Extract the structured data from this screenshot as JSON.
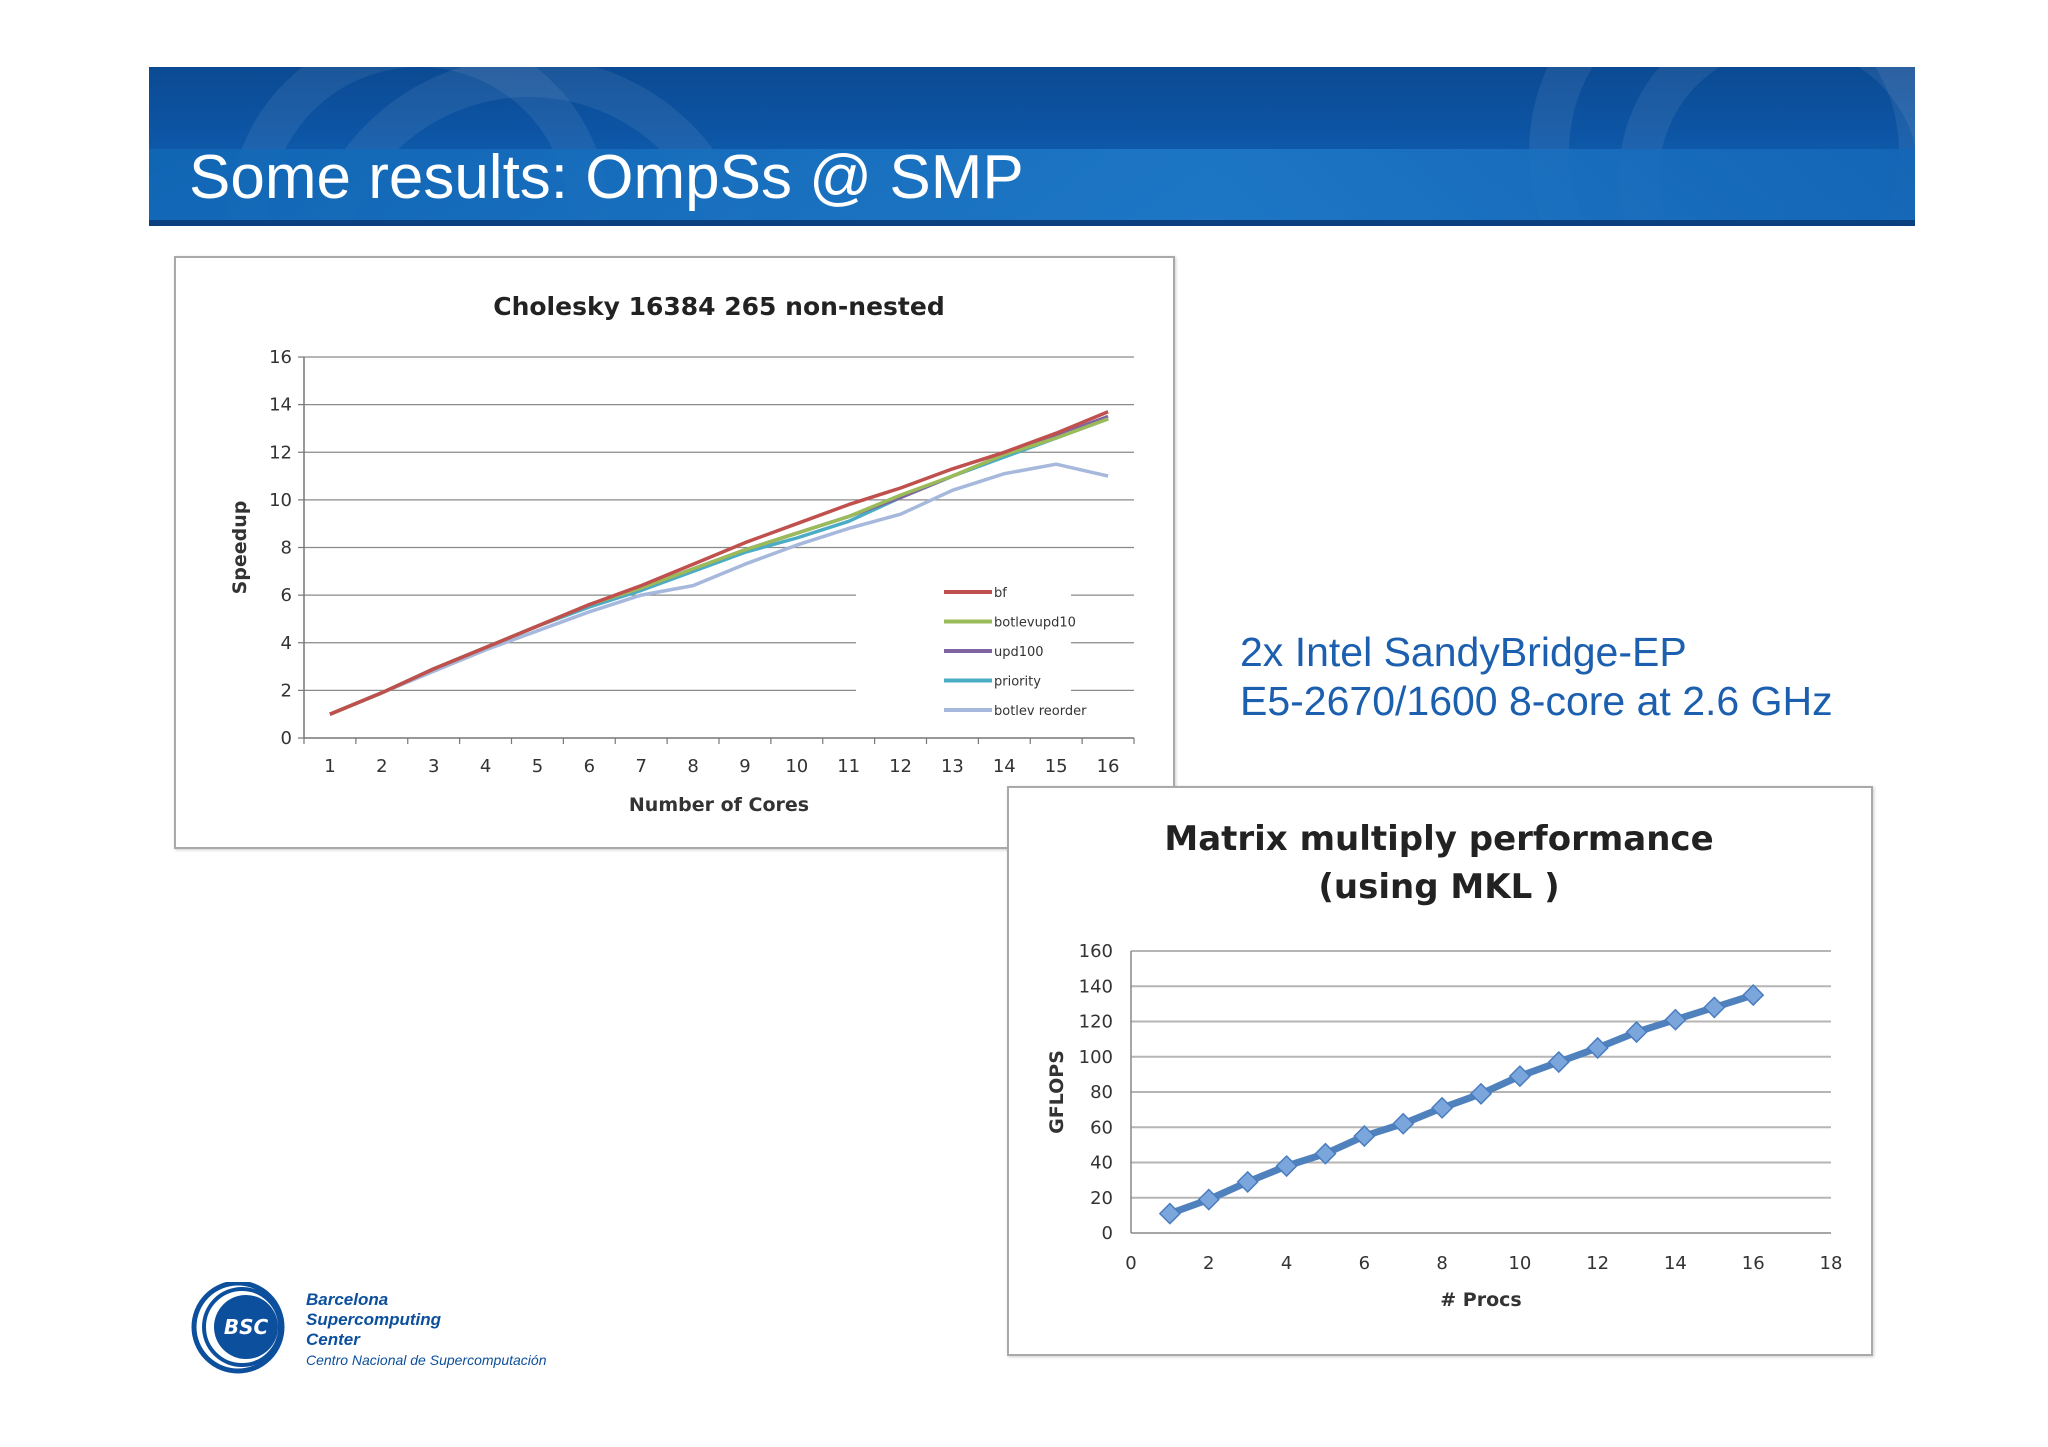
{
  "slide": {
    "title": "Some results: OmpSs @ SMP",
    "spec_lines": [
      "2x Intel SandyBridge-EP",
      "E5-2670/1600 8-core at 2.6 GHz"
    ],
    "colors": {
      "banner": "#0d56a6",
      "spec_text": "#1b5fae"
    }
  },
  "logo": {
    "badge": "BSC",
    "lines": [
      "Barcelona",
      "Supercomputing",
      "Center"
    ],
    "subtitle": "Centro Nacional de Supercomputación",
    "color": "#0c4f9c"
  },
  "chart_data": [
    {
      "type": "line",
      "title": "Cholesky 16384 265 non-nested",
      "xlabel": "Number of Cores",
      "ylabel": "Speedup",
      "x": [
        1,
        2,
        3,
        4,
        5,
        6,
        7,
        8,
        9,
        10,
        11,
        12,
        13,
        14,
        15,
        16
      ],
      "xlim": [
        1,
        16
      ],
      "ylim": [
        0,
        16
      ],
      "yticks": [
        0,
        2,
        4,
        6,
        8,
        10,
        12,
        14,
        16
      ],
      "grid": true,
      "legend_position": "right",
      "series": [
        {
          "name": "bf",
          "color": "#c0504d",
          "values": [
            1.0,
            1.9,
            2.9,
            3.8,
            4.7,
            5.6,
            6.4,
            7.3,
            8.2,
            9.0,
            9.8,
            10.5,
            11.3,
            12.0,
            12.8,
            13.7
          ]
        },
        {
          "name": "botlevupd10",
          "color": "#9bbb59",
          "values": [
            1.0,
            1.9,
            2.9,
            3.8,
            4.7,
            5.6,
            6.3,
            7.1,
            7.9,
            8.6,
            9.3,
            10.2,
            11.0,
            11.9,
            12.6,
            13.4
          ]
        },
        {
          "name": "upd100",
          "color": "#8064a2",
          "values": [
            1.0,
            1.9,
            2.9,
            3.8,
            4.7,
            5.6,
            6.3,
            7.1,
            7.9,
            8.6,
            9.3,
            10.1,
            11.0,
            11.9,
            12.7,
            13.5
          ]
        },
        {
          "name": "priority",
          "color": "#4bacc6",
          "values": [
            1.0,
            1.9,
            2.9,
            3.8,
            4.7,
            5.5,
            6.2,
            7.0,
            7.8,
            8.4,
            9.1,
            10.1,
            11.0,
            11.8,
            12.6,
            13.4
          ]
        },
        {
          "name": "botlev reorder",
          "color": "#a6b8dc",
          "values": [
            1.0,
            1.9,
            2.8,
            3.7,
            4.5,
            5.3,
            6.0,
            6.4,
            7.3,
            8.1,
            8.8,
            9.4,
            10.4,
            11.1,
            11.5,
            11.0
          ]
        }
      ]
    },
    {
      "type": "line",
      "title": [
        "Matrix multiply performance",
        "(using MKL )"
      ],
      "xlabel": "# Procs",
      "ylabel": "GFLOPS",
      "xlim": [
        0,
        18
      ],
      "xticks": [
        0,
        2,
        4,
        6,
        8,
        10,
        12,
        14,
        16,
        18
      ],
      "ylim": [
        0,
        160
      ],
      "yticks": [
        0,
        20,
        40,
        60,
        80,
        100,
        120,
        140,
        160
      ],
      "grid": true,
      "series": [
        {
          "color": "#4f81bd",
          "marker": "diamond",
          "x": [
            1,
            2,
            3,
            4,
            5,
            6,
            7,
            8,
            9,
            10,
            11,
            12,
            13,
            14,
            15,
            16
          ],
          "values": [
            11,
            19,
            29,
            38,
            45,
            55,
            62,
            71,
            79,
            89,
            97,
            105,
            114,
            121,
            128,
            135
          ]
        }
      ]
    }
  ]
}
